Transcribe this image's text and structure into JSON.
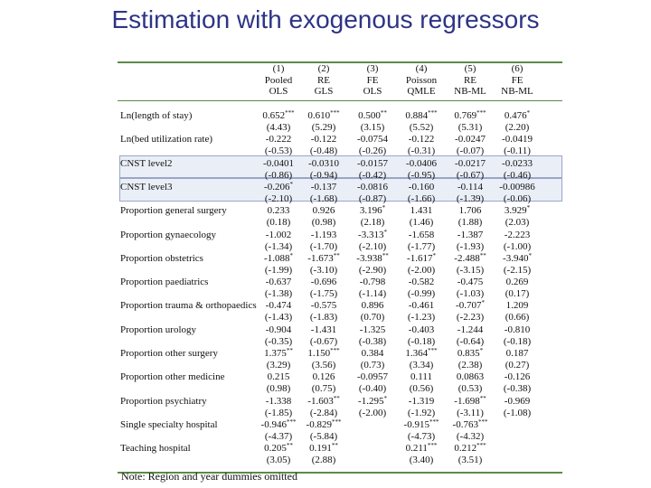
{
  "title": "Estimation with exogenous regressors",
  "table": {
    "columns": [
      {
        "num": "(1)",
        "l1": "Pooled",
        "l2": "OLS"
      },
      {
        "num": "(2)",
        "l1": "RE",
        "l2": "GLS"
      },
      {
        "num": "(3)",
        "l1": "FE",
        "l2": "OLS"
      },
      {
        "num": "(4)",
        "l1": "Poisson",
        "l2": "QMLE"
      },
      {
        "num": "(5)",
        "l1": "RE",
        "l2": "NB-ML"
      },
      {
        "num": "(6)",
        "l1": "FE",
        "l2": "NB-ML"
      }
    ],
    "rows": [
      {
        "label": "Ln(length of stay)",
        "coef": [
          "0.652***",
          "0.610***",
          "0.500**",
          "0.884***",
          "0.769***",
          "0.476*"
        ],
        "t": [
          "(4.43)",
          "(5.29)",
          "(3.15)",
          "(5.52)",
          "(5.31)",
          "(2.20)"
        ]
      },
      {
        "label": "Ln(bed utilization rate)",
        "coef": [
          "-0.222",
          "-0.122",
          "-0.0754",
          "-0.122",
          "-0.0247",
          "-0.0419"
        ],
        "t": [
          "(-0.53)",
          "(-0.48)",
          "(-0.26)",
          "(-0.31)",
          "(-0.07)",
          "(-0.11)"
        ]
      },
      {
        "label": "CNST level2",
        "coef": [
          "-0.0401",
          "-0.0310",
          "-0.0157",
          "-0.0406",
          "-0.0217",
          "-0.0233"
        ],
        "t": [
          "(-0.86)",
          "(-0.94)",
          "(-0.42)",
          "(-0.95)",
          "(-0.67)",
          "(-0.46)"
        ]
      },
      {
        "label": "CNST level3",
        "coef": [
          "-0.206*",
          "-0.137",
          "-0.0816",
          "-0.160",
          "-0.114",
          "-0.00986"
        ],
        "t": [
          "(-2.10)",
          "(-1.68)",
          "(-0.87)",
          "(-1.66)",
          "(-1.39)",
          "(-0.06)"
        ]
      },
      {
        "label": "Proportion general surgery",
        "coef": [
          "0.233",
          "0.926",
          "3.196*",
          "1.431",
          "1.706",
          "3.929*"
        ],
        "t": [
          "(0.18)",
          "(0.98)",
          "(2.18)",
          "(1.46)",
          "(1.88)",
          "(2.03)"
        ]
      },
      {
        "label": "Proportion gynaecology",
        "coef": [
          "-1.002",
          "-1.193",
          "-3.313*",
          "-1.658",
          "-1.387",
          "-2.223"
        ],
        "t": [
          "(-1.34)",
          "(-1.70)",
          "(-2.10)",
          "(-1.77)",
          "(-1.93)",
          "(-1.00)"
        ]
      },
      {
        "label": "Proportion obstetrics",
        "coef": [
          "-1.088*",
          "-1.673**",
          "-3.938**",
          "-1.617*",
          "-2.488**",
          "-3.940*"
        ],
        "t": [
          "(-1.99)",
          "(-3.10)",
          "(-2.90)",
          "(-2.00)",
          "(-3.15)",
          "(-2.15)"
        ]
      },
      {
        "label": "Proportion paediatrics",
        "coef": [
          "-0.637",
          "-0.696",
          "-0.798",
          "-0.582",
          "-0.475",
          "0.269"
        ],
        "t": [
          "(-1.38)",
          "(-1.75)",
          "(-1.14)",
          "(-0.99)",
          "(-1.03)",
          "(0.17)"
        ]
      },
      {
        "label": "Proportion trauma & orthopaedics",
        "coef": [
          "-0.474",
          "-0.575",
          "0.896",
          "-0.461",
          "-0.707*",
          "1.209"
        ],
        "t": [
          "(-1.43)",
          "(-1.83)",
          "(0.70)",
          "(-1.23)",
          "(-2.23)",
          "(0.66)"
        ]
      },
      {
        "label": "Proportion urology",
        "coef": [
          "-0.904",
          "-1.431",
          "-1.325",
          "-0.403",
          "-1.244",
          "-0.810"
        ],
        "t": [
          "(-0.35)",
          "(-0.67)",
          "(-0.38)",
          "(-0.18)",
          "(-0.64)",
          "(-0.18)"
        ]
      },
      {
        "label": "Proportion other surgery",
        "coef": [
          "1.375**",
          "1.150***",
          "0.384",
          "1.364***",
          "0.835*",
          "0.187"
        ],
        "t": [
          "(3.29)",
          "(3.56)",
          "(0.73)",
          "(3.34)",
          "(2.38)",
          "(0.27)"
        ]
      },
      {
        "label": "Proportion other medicine",
        "coef": [
          "0.215",
          "0.126",
          "-0.0957",
          "0.111",
          "0.0863",
          "-0.126"
        ],
        "t": [
          "(0.98)",
          "(0.75)",
          "(-0.40)",
          "(0.56)",
          "(0.53)",
          "(-0.38)"
        ]
      },
      {
        "label": "Proportion psychiatry",
        "coef": [
          "-1.338",
          "-1.603**",
          "-1.295*",
          "-1.319",
          "-1.698**",
          "-0.969"
        ],
        "t": [
          "(-1.85)",
          "(-2.84)",
          "(-2.00)",
          "(-1.92)",
          "(-3.11)",
          "(-1.08)"
        ]
      },
      {
        "label": "Single specialty hospital",
        "coef": [
          "-0.946***",
          "-0.829***",
          "",
          "-0.915***",
          "-0.763***",
          ""
        ],
        "t": [
          "(-4.37)",
          "(-5.84)",
          "",
          "(-4.73)",
          "(-4.32)",
          ""
        ]
      },
      {
        "label": "Teaching hospital",
        "coef": [
          "0.205**",
          "0.191**",
          "",
          "0.211***",
          "0.212***",
          ""
        ],
        "t": [
          "(3.05)",
          "(2.88)",
          "",
          "(3.40)",
          "(3.51)",
          ""
        ]
      }
    ]
  },
  "note": "Note: Region and year dummies omitted"
}
